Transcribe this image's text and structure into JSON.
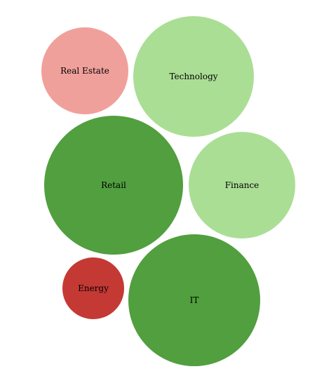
{
  "chart_data": {
    "type": "bubble",
    "title": "",
    "items": [
      {
        "label": "Real Estate",
        "size": 62,
        "color": "#f0a09b"
      },
      {
        "label": "Technology",
        "size": 86,
        "color": "#abde95"
      },
      {
        "label": "Retail",
        "size": 99,
        "color": "#519f3f"
      },
      {
        "label": "Finance",
        "size": 76,
        "color": "#abde95"
      },
      {
        "label": "Energy",
        "size": 44,
        "color": "#c53934"
      },
      {
        "label": "IT",
        "size": 94,
        "color": "#519f3f"
      }
    ]
  }
}
